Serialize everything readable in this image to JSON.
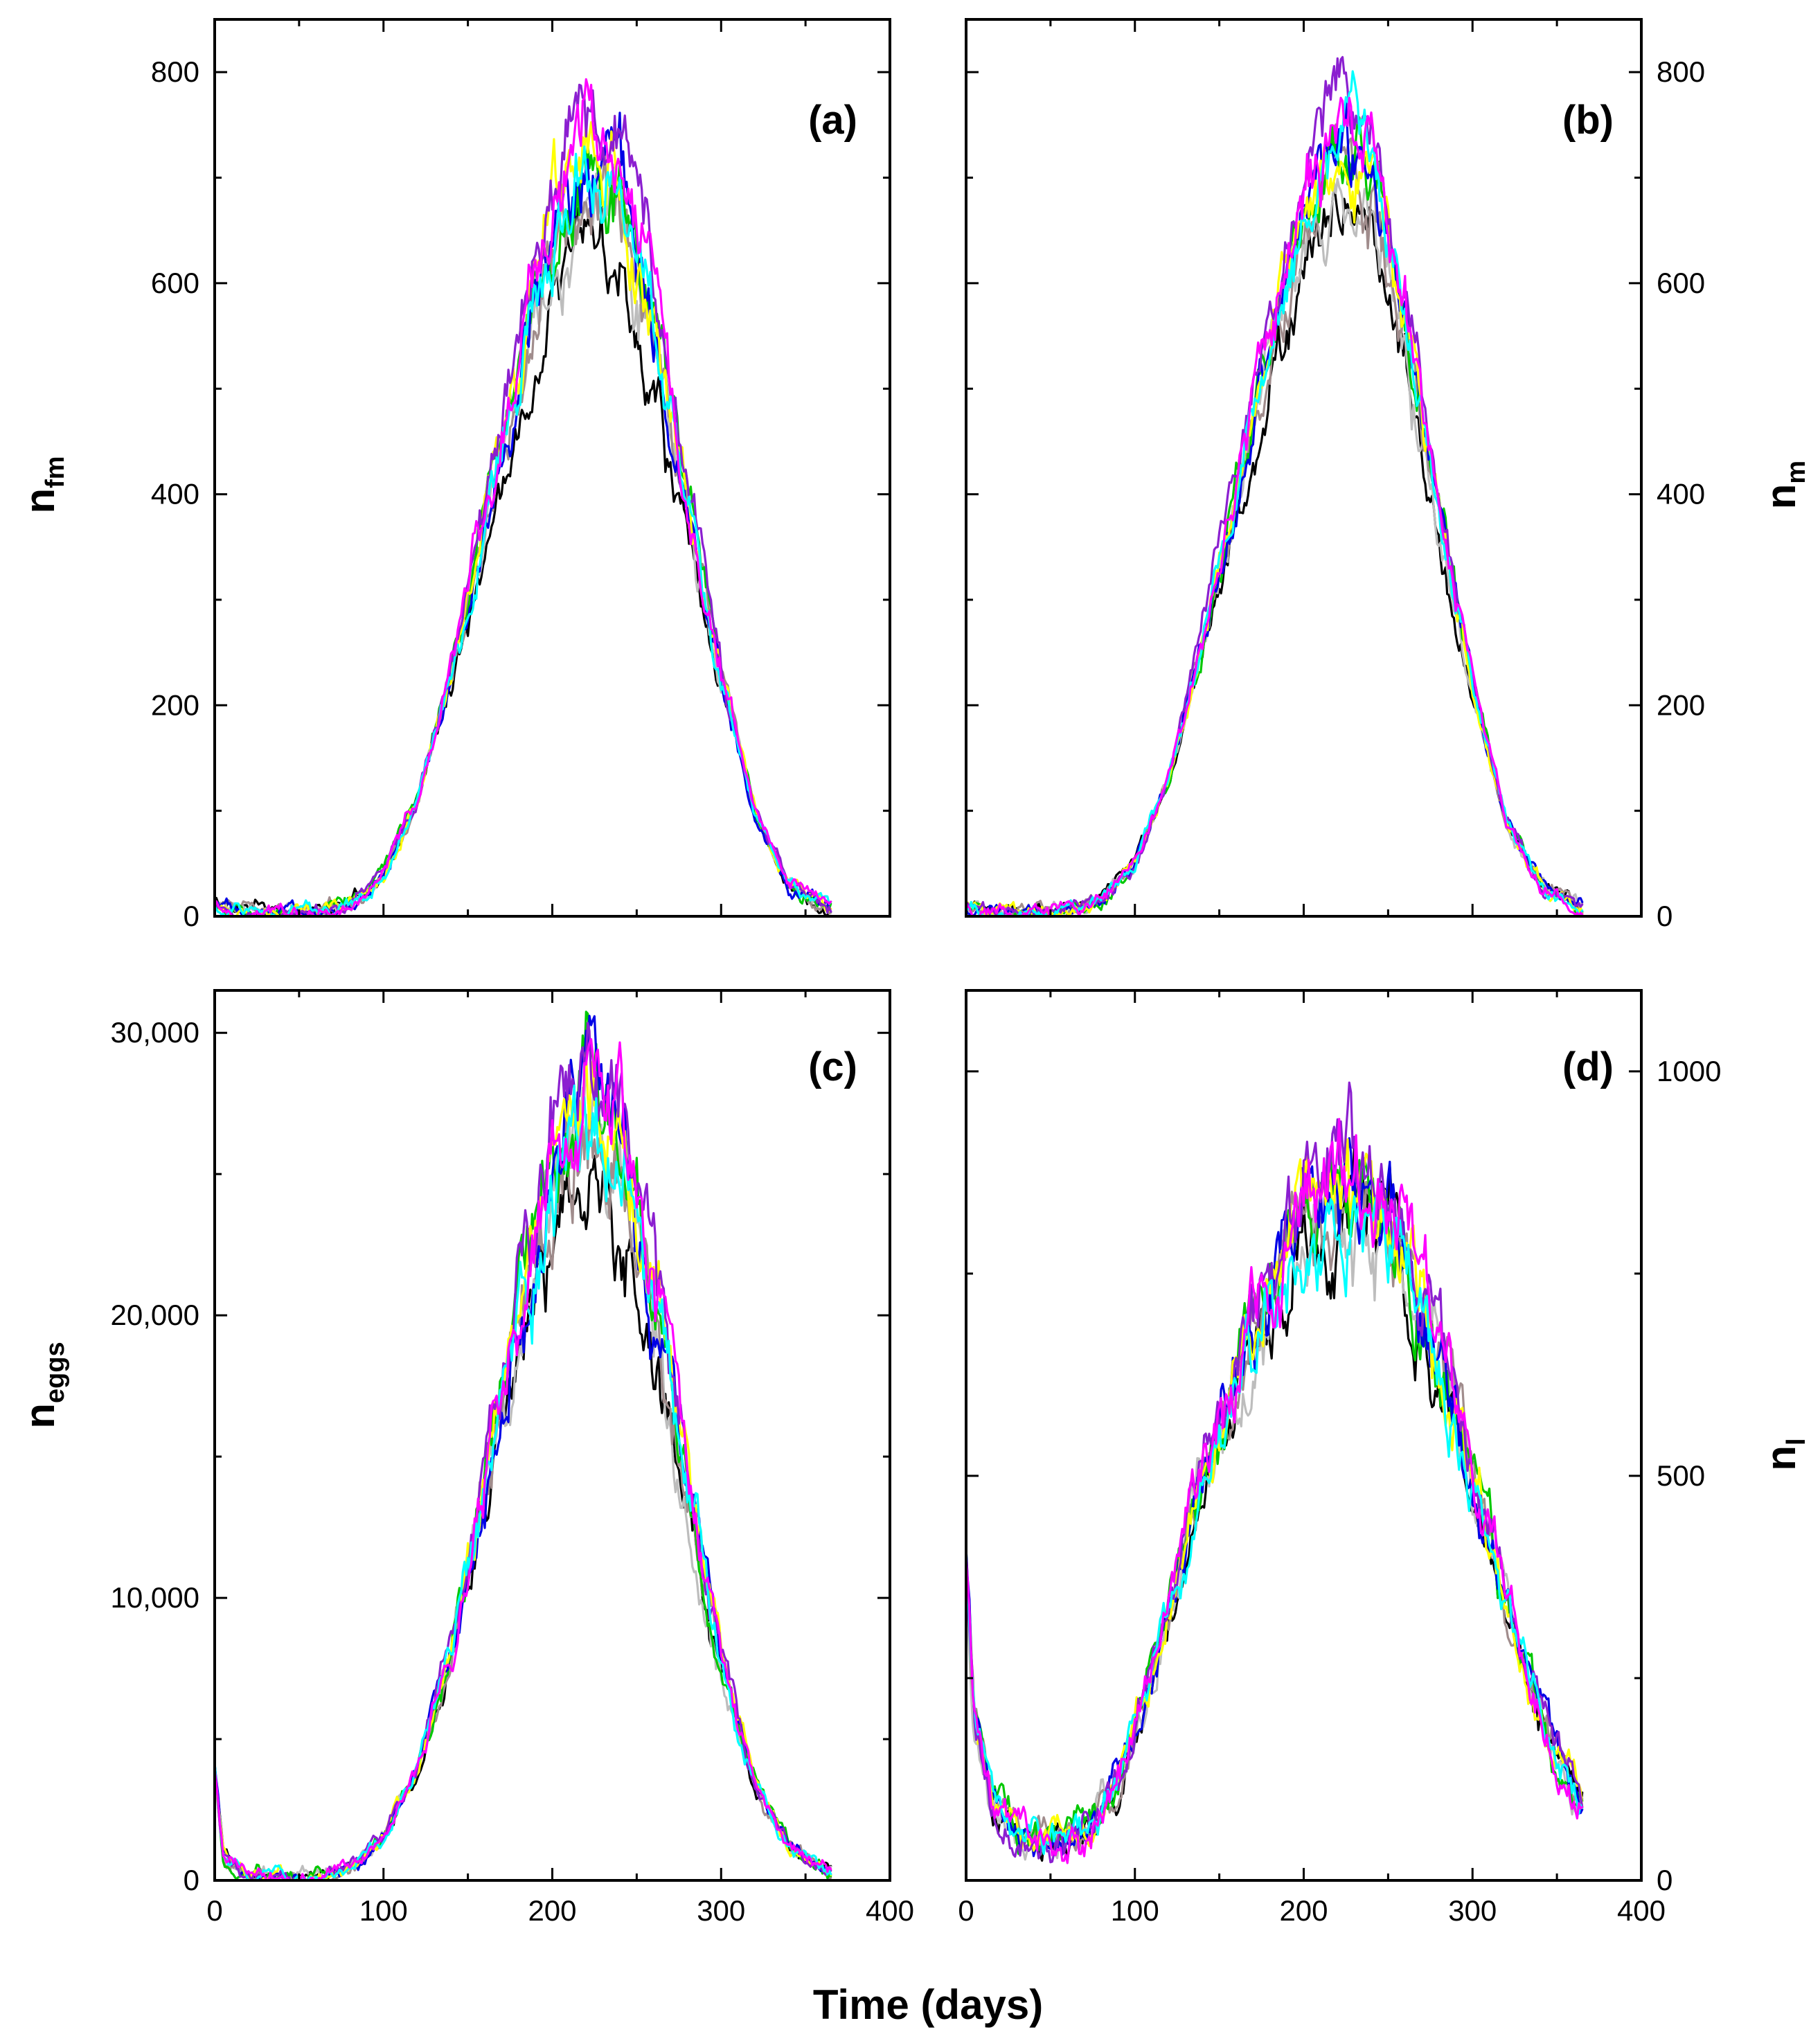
{
  "figure": {
    "xlabel": "Time (days)",
    "colors": [
      "#000000",
      "#bdbdbd",
      "#a08c8c",
      "#00c800",
      "#0000e6",
      "#ffff00",
      "#8b1fd0",
      "#00ffff",
      "#ff00ff"
    ]
  },
  "chart_data": [
    {
      "id": "a",
      "type": "line",
      "panel_label": "(a)",
      "ylabel_main": "n",
      "ylabel_sub": "fm",
      "ylabel_side": "left",
      "ticks_side": "left",
      "x_range": [
        0,
        400
      ],
      "x_ticks": [],
      "y_range": [
        0,
        850
      ],
      "y_ticks": [
        0,
        200,
        400,
        600,
        800
      ],
      "y_tick_labels": [
        "0",
        "200",
        "400",
        "600",
        "800"
      ],
      "series_names": [
        "run-black",
        "run-lightgray",
        "run-brown",
        "run-green",
        "run-blue",
        "run-yellow",
        "run-purple",
        "run-cyan",
        "run-magenta"
      ],
      "x": [
        0,
        20,
        40,
        60,
        80,
        100,
        120,
        140,
        160,
        180,
        200,
        220,
        240,
        260,
        280,
        300,
        320,
        340,
        365
      ],
      "mean": [
        10,
        4,
        3,
        4,
        12,
        40,
        110,
        230,
        370,
        510,
        640,
        720,
        690,
        560,
        390,
        230,
        100,
        30,
        8
      ],
      "noise": 0.035,
      "min_noise": 4,
      "spread": [
        0.9,
        0.96,
        0.97,
        1.0,
        1.0,
        1.02,
        1.08,
        0.99,
        1.05
      ]
    },
    {
      "id": "b",
      "type": "line",
      "panel_label": "(b)",
      "ylabel_main": "n",
      "ylabel_sub": "m",
      "ylabel_side": "right",
      "ticks_side": "right",
      "x_range": [
        0,
        400
      ],
      "x_ticks": [],
      "y_range": [
        0,
        850
      ],
      "y_ticks": [
        0,
        200,
        400,
        600,
        800
      ],
      "y_tick_labels": [
        "0",
        "200",
        "400",
        "600",
        "800"
      ],
      "series_names": [
        "run-black",
        "run-lightgray",
        "run-brown",
        "run-green",
        "run-blue",
        "run-yellow",
        "run-purple",
        "run-cyan",
        "run-magenta"
      ],
      "x": [
        0,
        20,
        40,
        60,
        80,
        100,
        120,
        140,
        160,
        180,
        200,
        220,
        240,
        260,
        280,
        300,
        320,
        340,
        365
      ],
      "mean": [
        8,
        4,
        3,
        4,
        15,
        50,
        130,
        260,
        400,
        540,
        660,
        730,
        700,
        560,
        380,
        220,
        90,
        30,
        7
      ],
      "noise": 0.03,
      "min_noise": 4,
      "spread": [
        0.92,
        0.95,
        0.97,
        1.0,
        1.0,
        1.01,
        1.07,
        1.02,
        1.04
      ]
    },
    {
      "id": "c",
      "type": "line",
      "panel_label": "(c)",
      "ylabel_main": "n",
      "ylabel_sub": "eggs",
      "ylabel_side": "left",
      "ticks_side": "left",
      "x_range": [
        0,
        400
      ],
      "x_ticks": [
        0,
        100,
        200,
        300,
        400
      ],
      "x_tick_labels": [
        "0",
        "100",
        "200",
        "300",
        "400"
      ],
      "y_range": [
        0,
        31500
      ],
      "y_ticks": [
        0,
        10000,
        20000,
        30000
      ],
      "y_tick_labels": [
        "0",
        "10,000",
        "20,000",
        "30,000"
      ],
      "series_names": [
        "run-black",
        "run-lightgray",
        "run-brown",
        "run-green",
        "run-blue",
        "run-yellow",
        "run-purple",
        "run-cyan",
        "run-magenta"
      ],
      "x": [
        0,
        5,
        20,
        40,
        60,
        80,
        100,
        120,
        140,
        160,
        180,
        200,
        220,
        240,
        260,
        280,
        300,
        320,
        340,
        365
      ],
      "mean": [
        4000,
        900,
        150,
        100,
        150,
        400,
        1500,
        4000,
        8000,
        14000,
        20000,
        25000,
        27000,
        25500,
        20500,
        14000,
        8000,
        3500,
        1200,
        300
      ],
      "noise": 0.045,
      "min_noise": 150,
      "spread": [
        0.9,
        0.96,
        0.97,
        1.0,
        1.0,
        1.02,
        1.07,
        0.98,
        1.05
      ]
    },
    {
      "id": "d",
      "type": "line",
      "panel_label": "(d)",
      "ylabel_main": "n",
      "ylabel_sub": "l",
      "ylabel_side": "right",
      "ticks_side": "right",
      "x_range": [
        0,
        400
      ],
      "x_ticks": [
        0,
        100,
        200,
        300,
        400
      ],
      "x_tick_labels": [
        "0",
        "100",
        "200",
        "300",
        "400"
      ],
      "y_range": [
        0,
        1100
      ],
      "y_ticks": [
        0,
        500,
        1000
      ],
      "y_tick_labels": [
        "0",
        "500",
        "1000"
      ],
      "series_names": [
        "run-black",
        "run-lightgray",
        "run-brown",
        "run-green",
        "run-blue",
        "run-yellow",
        "run-purple",
        "run-cyan",
        "run-magenta"
      ],
      "x": [
        0,
        5,
        15,
        30,
        50,
        70,
        90,
        110,
        130,
        150,
        170,
        190,
        210,
        230,
        250,
        270,
        290,
        310,
        330,
        350,
        365
      ],
      "mean": [
        390,
        200,
        100,
        55,
        45,
        55,
        120,
        260,
        420,
        560,
        680,
        780,
        850,
        860,
        830,
        730,
        580,
        420,
        270,
        150,
        95
      ],
      "noise": 0.045,
      "min_noise": 14,
      "spread": [
        0.95,
        0.96,
        0.97,
        1.0,
        1.0,
        1.01,
        1.04,
        0.97,
        1.02
      ]
    }
  ]
}
